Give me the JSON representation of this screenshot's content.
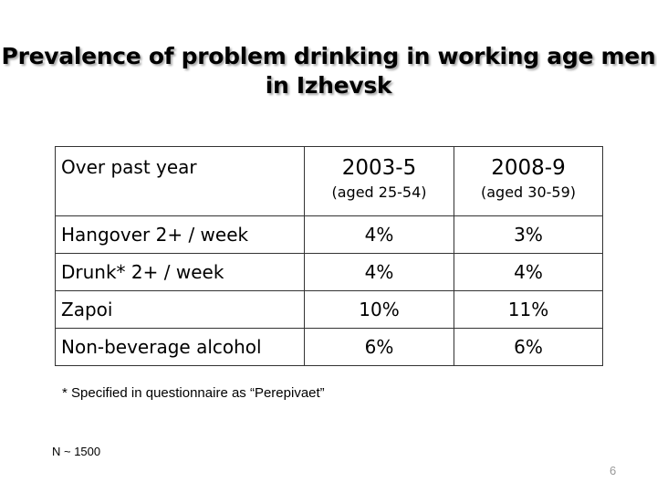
{
  "header": {
    "title": "Prevalence of problem drinking in working age men in Izhevsk"
  },
  "table": {
    "header": [
      {
        "label": "Over past year"
      },
      {
        "label": "2003-5",
        "sub": "(aged 25-54)"
      },
      {
        "label": "2008-9",
        "sub": "(aged 30-59)"
      }
    ],
    "rows": [
      [
        "Hangover 2+ / week",
        "4%",
        "3%"
      ],
      [
        "Drunk*  2+ / week",
        "4%",
        "4%"
      ],
      [
        "Zapoi",
        "10%",
        "11%"
      ],
      [
        "Non-beverage alcohol",
        "6%",
        "6%"
      ]
    ]
  },
  "footnote": "*  Specified in questionnaire as “Perepivaet”",
  "note": "N ~ 1500",
  "page_number": "6"
}
